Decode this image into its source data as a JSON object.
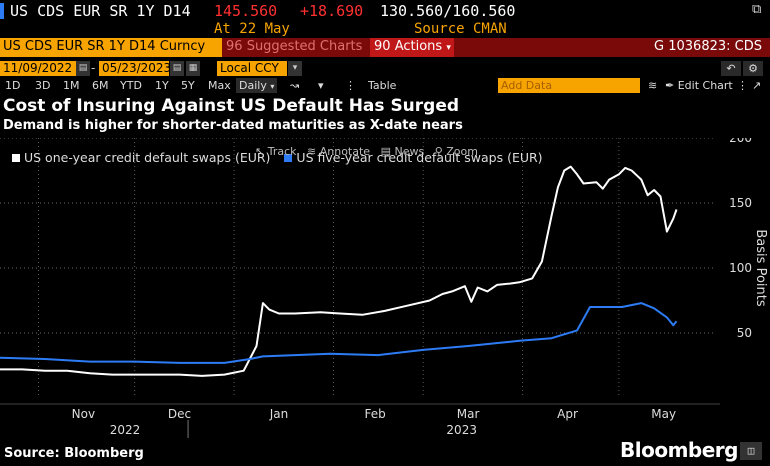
{
  "header": {
    "ticker": "US CDS EUR SR 1Y D14",
    "last": "145.560",
    "change": "+18.690",
    "range": "130.560/160.560",
    "at_label": "At 22 May",
    "source_label": "Source CMAN"
  },
  "toolbar": {
    "security_label": "US CDS EUR SR 1Y D14 Curncy",
    "suggested": "Suggested Charts",
    "actions": "Actions",
    "actions_num": "90",
    "suggested_num": "96",
    "gcode": "G 1036823: CDS"
  },
  "dates": {
    "start": "11/09/2022",
    "end": "05/23/2023",
    "currency": "Local CCY"
  },
  "periods": [
    "1D",
    "3D",
    "1M",
    "6M",
    "YTD",
    "1Y",
    "5Y",
    "Max"
  ],
  "period_selected": "Daily",
  "table_label": "Table",
  "add_data": "Add Data",
  "edit_chart": "Edit Chart",
  "title": "Cost of Insuring Against US Default Has Surged",
  "subtitle": "Demand is higher for shorter-dated maturities as X-date nears",
  "legend": {
    "series1": "US one-year credit default swaps (EUR)",
    "series2": "US five-year credit default swaps (EUR)"
  },
  "toolhints": {
    "track": "Track",
    "annotate": "Annotate",
    "news": "News",
    "zoom": "Zoom"
  },
  "source": "Source: Bloomberg",
  "brand": "Bloomberg",
  "colors": {
    "accent_orange": "#f7a400",
    "series1": "#ffffff",
    "series2": "#2d7cf6",
    "bar_red": "#7a0a0a"
  },
  "chart_data": {
    "type": "line",
    "ylabel": "Basis Points",
    "ylim": [
      0,
      200
    ],
    "yticks": [
      50,
      100,
      150,
      200
    ],
    "xlim": [
      "2022-10-20",
      "2023-05-31"
    ],
    "month_ticks": [
      "Nov",
      "Dec",
      "Jan",
      "Feb",
      "Mar",
      "Apr",
      "May"
    ],
    "year_labels": [
      "2022",
      "2023"
    ],
    "series": [
      {
        "name": "US one-year credit default swaps (EUR)",
        "color": "#ffffff",
        "points": [
          [
            "2022-10-20",
            22
          ],
          [
            "2022-10-27",
            22
          ],
          [
            "2022-11-03",
            21
          ],
          [
            "2022-11-10",
            21
          ],
          [
            "2022-11-17",
            19
          ],
          [
            "2022-11-24",
            18
          ],
          [
            "2022-12-01",
            18
          ],
          [
            "2022-12-08",
            18
          ],
          [
            "2022-12-15",
            18
          ],
          [
            "2022-12-22",
            17
          ],
          [
            "2022-12-29",
            18
          ],
          [
            "2023-01-04",
            21
          ],
          [
            "2023-01-08",
            40
          ],
          [
            "2023-01-10",
            73
          ],
          [
            "2023-01-12",
            68
          ],
          [
            "2023-01-15",
            65
          ],
          [
            "2023-01-20",
            65
          ],
          [
            "2023-01-28",
            66
          ],
          [
            "2023-02-03",
            65
          ],
          [
            "2023-02-10",
            64
          ],
          [
            "2023-02-17",
            67
          ],
          [
            "2023-02-24",
            71
          ],
          [
            "2023-03-03",
            75
          ],
          [
            "2023-03-07",
            80
          ],
          [
            "2023-03-10",
            82
          ],
          [
            "2023-03-14",
            86
          ],
          [
            "2023-03-16",
            74
          ],
          [
            "2023-03-18",
            85
          ],
          [
            "2023-03-21",
            82
          ],
          [
            "2023-03-24",
            87
          ],
          [
            "2023-03-28",
            88
          ],
          [
            "2023-03-31",
            89
          ],
          [
            "2023-04-04",
            92
          ],
          [
            "2023-04-07",
            105
          ],
          [
            "2023-04-10",
            140
          ],
          [
            "2023-04-12",
            162
          ],
          [
            "2023-04-14",
            175
          ],
          [
            "2023-04-16",
            178
          ],
          [
            "2023-04-18",
            172
          ],
          [
            "2023-04-20",
            165
          ],
          [
            "2023-04-24",
            166
          ],
          [
            "2023-04-26",
            161
          ],
          [
            "2023-04-28",
            168
          ],
          [
            "2023-05-01",
            172
          ],
          [
            "2023-05-03",
            177
          ],
          [
            "2023-05-05",
            175
          ],
          [
            "2023-05-08",
            168
          ],
          [
            "2023-05-10",
            156
          ],
          [
            "2023-05-12",
            160
          ],
          [
            "2023-05-14",
            155
          ],
          [
            "2023-05-16",
            128
          ],
          [
            "2023-05-18",
            138
          ],
          [
            "2023-05-19",
            145
          ]
        ]
      },
      {
        "name": "US five-year credit default swaps (EUR)",
        "color": "#2d7cf6",
        "points": [
          [
            "2022-10-20",
            31
          ],
          [
            "2022-11-03",
            30
          ],
          [
            "2022-11-17",
            28
          ],
          [
            "2022-12-01",
            28
          ],
          [
            "2022-12-15",
            27
          ],
          [
            "2022-12-29",
            27
          ],
          [
            "2023-01-06",
            30
          ],
          [
            "2023-01-10",
            32
          ],
          [
            "2023-01-20",
            33
          ],
          [
            "2023-01-31",
            34
          ],
          [
            "2023-02-15",
            33
          ],
          [
            "2023-03-01",
            37
          ],
          [
            "2023-03-15",
            40
          ],
          [
            "2023-03-31",
            44
          ],
          [
            "2023-04-10",
            46
          ],
          [
            "2023-04-18",
            52
          ],
          [
            "2023-04-22",
            70
          ],
          [
            "2023-05-02",
            70
          ],
          [
            "2023-05-08",
            73
          ],
          [
            "2023-05-12",
            69
          ],
          [
            "2023-05-16",
            62
          ],
          [
            "2023-05-18",
            56
          ],
          [
            "2023-05-19",
            59
          ]
        ]
      }
    ]
  }
}
